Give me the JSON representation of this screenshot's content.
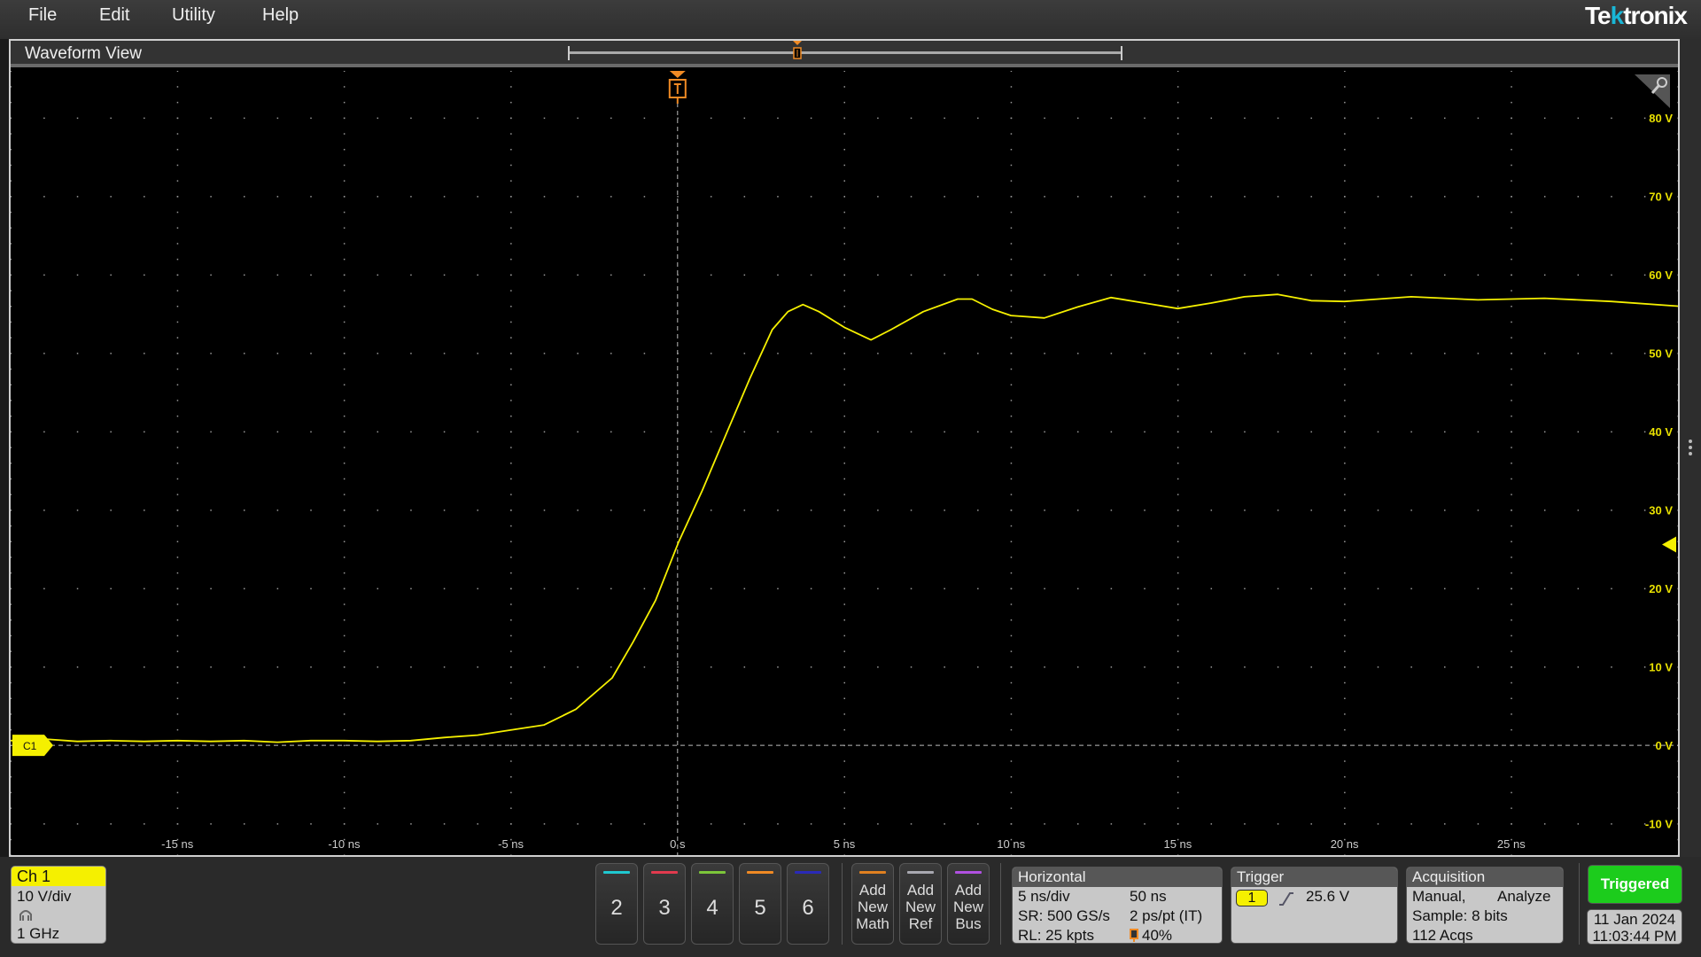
{
  "menu": {
    "items": [
      "File",
      "Edit",
      "Utility",
      "Help"
    ]
  },
  "brand": {
    "logo": "Tektronix"
  },
  "view": {
    "title": "Waveform View"
  },
  "chart_data": {
    "type": "line",
    "xlim": [
      -20,
      30
    ],
    "ylim": [
      -14,
      86
    ],
    "x_unit": "ns",
    "y_unit": "V",
    "x_ticks": [
      "-15 ns",
      "-10 ns",
      "-5 ns",
      "0 s",
      "5 ns",
      "10 ns",
      "15 ns",
      "20 ns",
      "25 ns"
    ],
    "x_tick_values": [
      -15,
      -10,
      -5,
      0,
      5,
      10,
      15,
      20,
      25
    ],
    "y_ticks": [
      "80 V",
      "70 V",
      "60 V",
      "50 V",
      "40 V",
      "30 V",
      "20 V",
      "10 V",
      "0 V",
      "-10 V"
    ],
    "y_tick_values": [
      80,
      70,
      60,
      50,
      40,
      30,
      20,
      10,
      0,
      -10
    ],
    "grid": true,
    "series": [
      {
        "channel": "C1",
        "color": "#f5f000",
        "x": [
          -20,
          -19,
          -18,
          -17,
          -16,
          -15,
          -14,
          -13,
          -12,
          -11,
          -10,
          -9,
          -8,
          -7,
          -6,
          -5.4,
          -4,
          -3.05,
          -1.96,
          -1.33,
          -0.66,
          0.03,
          0.74,
          1.51,
          2.17,
          2.84,
          3.31,
          3.76,
          4.24,
          5.0,
          5.8,
          6.4,
          7.37,
          8.4,
          8.83,
          9.44,
          10,
          11,
          12,
          13,
          14,
          15,
          16,
          17,
          18,
          19,
          20,
          22,
          24,
          26,
          28,
          30
        ],
        "y": [
          0.6,
          0.8,
          0.5,
          0.6,
          0.5,
          0.6,
          0.5,
          0.6,
          0.4,
          0.6,
          0.6,
          0.5,
          0.6,
          1.0,
          1.3,
          1.7,
          2.6,
          4.6,
          8.6,
          13.2,
          18.5,
          25.9,
          32.5,
          40.2,
          46.8,
          53.0,
          55.3,
          56.2,
          55.3,
          53.3,
          51.7,
          53.0,
          55.3,
          56.9,
          56.9,
          55.6,
          54.8,
          54.5,
          55.9,
          57.1,
          56.4,
          55.7,
          56.4,
          57.2,
          57.5,
          56.7,
          56.6,
          57.2,
          56.8,
          57.0,
          56.6,
          56.0
        ]
      }
    ],
    "trigger_position": 0,
    "trigger_level": 25.6
  },
  "channel1": {
    "badge": "C1",
    "label": "Ch 1",
    "scale": "10 V/div",
    "bandwidth": "1 GHz",
    "color": "#f5f000"
  },
  "channels": [
    {
      "num": "2",
      "color": "#1fc8d0"
    },
    {
      "num": "3",
      "color": "#e23a4e"
    },
    {
      "num": "4",
      "color": "#7cc63a"
    },
    {
      "num": "5",
      "color": "#f08a24"
    },
    {
      "num": "6",
      "color": "#2a2ab8"
    }
  ],
  "add_buttons": [
    {
      "label": "Add New Math",
      "color": "#e08020"
    },
    {
      "label": "Add New Ref",
      "color": "#a8a8b0"
    },
    {
      "label": "Add New Bus",
      "color": "#b050e0"
    }
  ],
  "horizontal": {
    "title": "Horizontal",
    "scale": "5 ns/div",
    "duration": "50 ns",
    "sample_rate": "SR: 500 GS/s",
    "resolution": "2 ps/pt (IT)",
    "record_length": "RL: 25 kpts",
    "position": "40%"
  },
  "trigger": {
    "title": "Trigger",
    "source": "1",
    "level": "25.6 V"
  },
  "acquisition": {
    "title": "Acquisition",
    "mode": "Manual,",
    "analyze": "Analyze",
    "sample": "Sample: 8 bits",
    "acqs": "112 Acqs"
  },
  "status": {
    "label": "Triggered",
    "color": "#1ccc1c",
    "date": "11 Jan 2024",
    "time": "11:03:44 PM"
  }
}
